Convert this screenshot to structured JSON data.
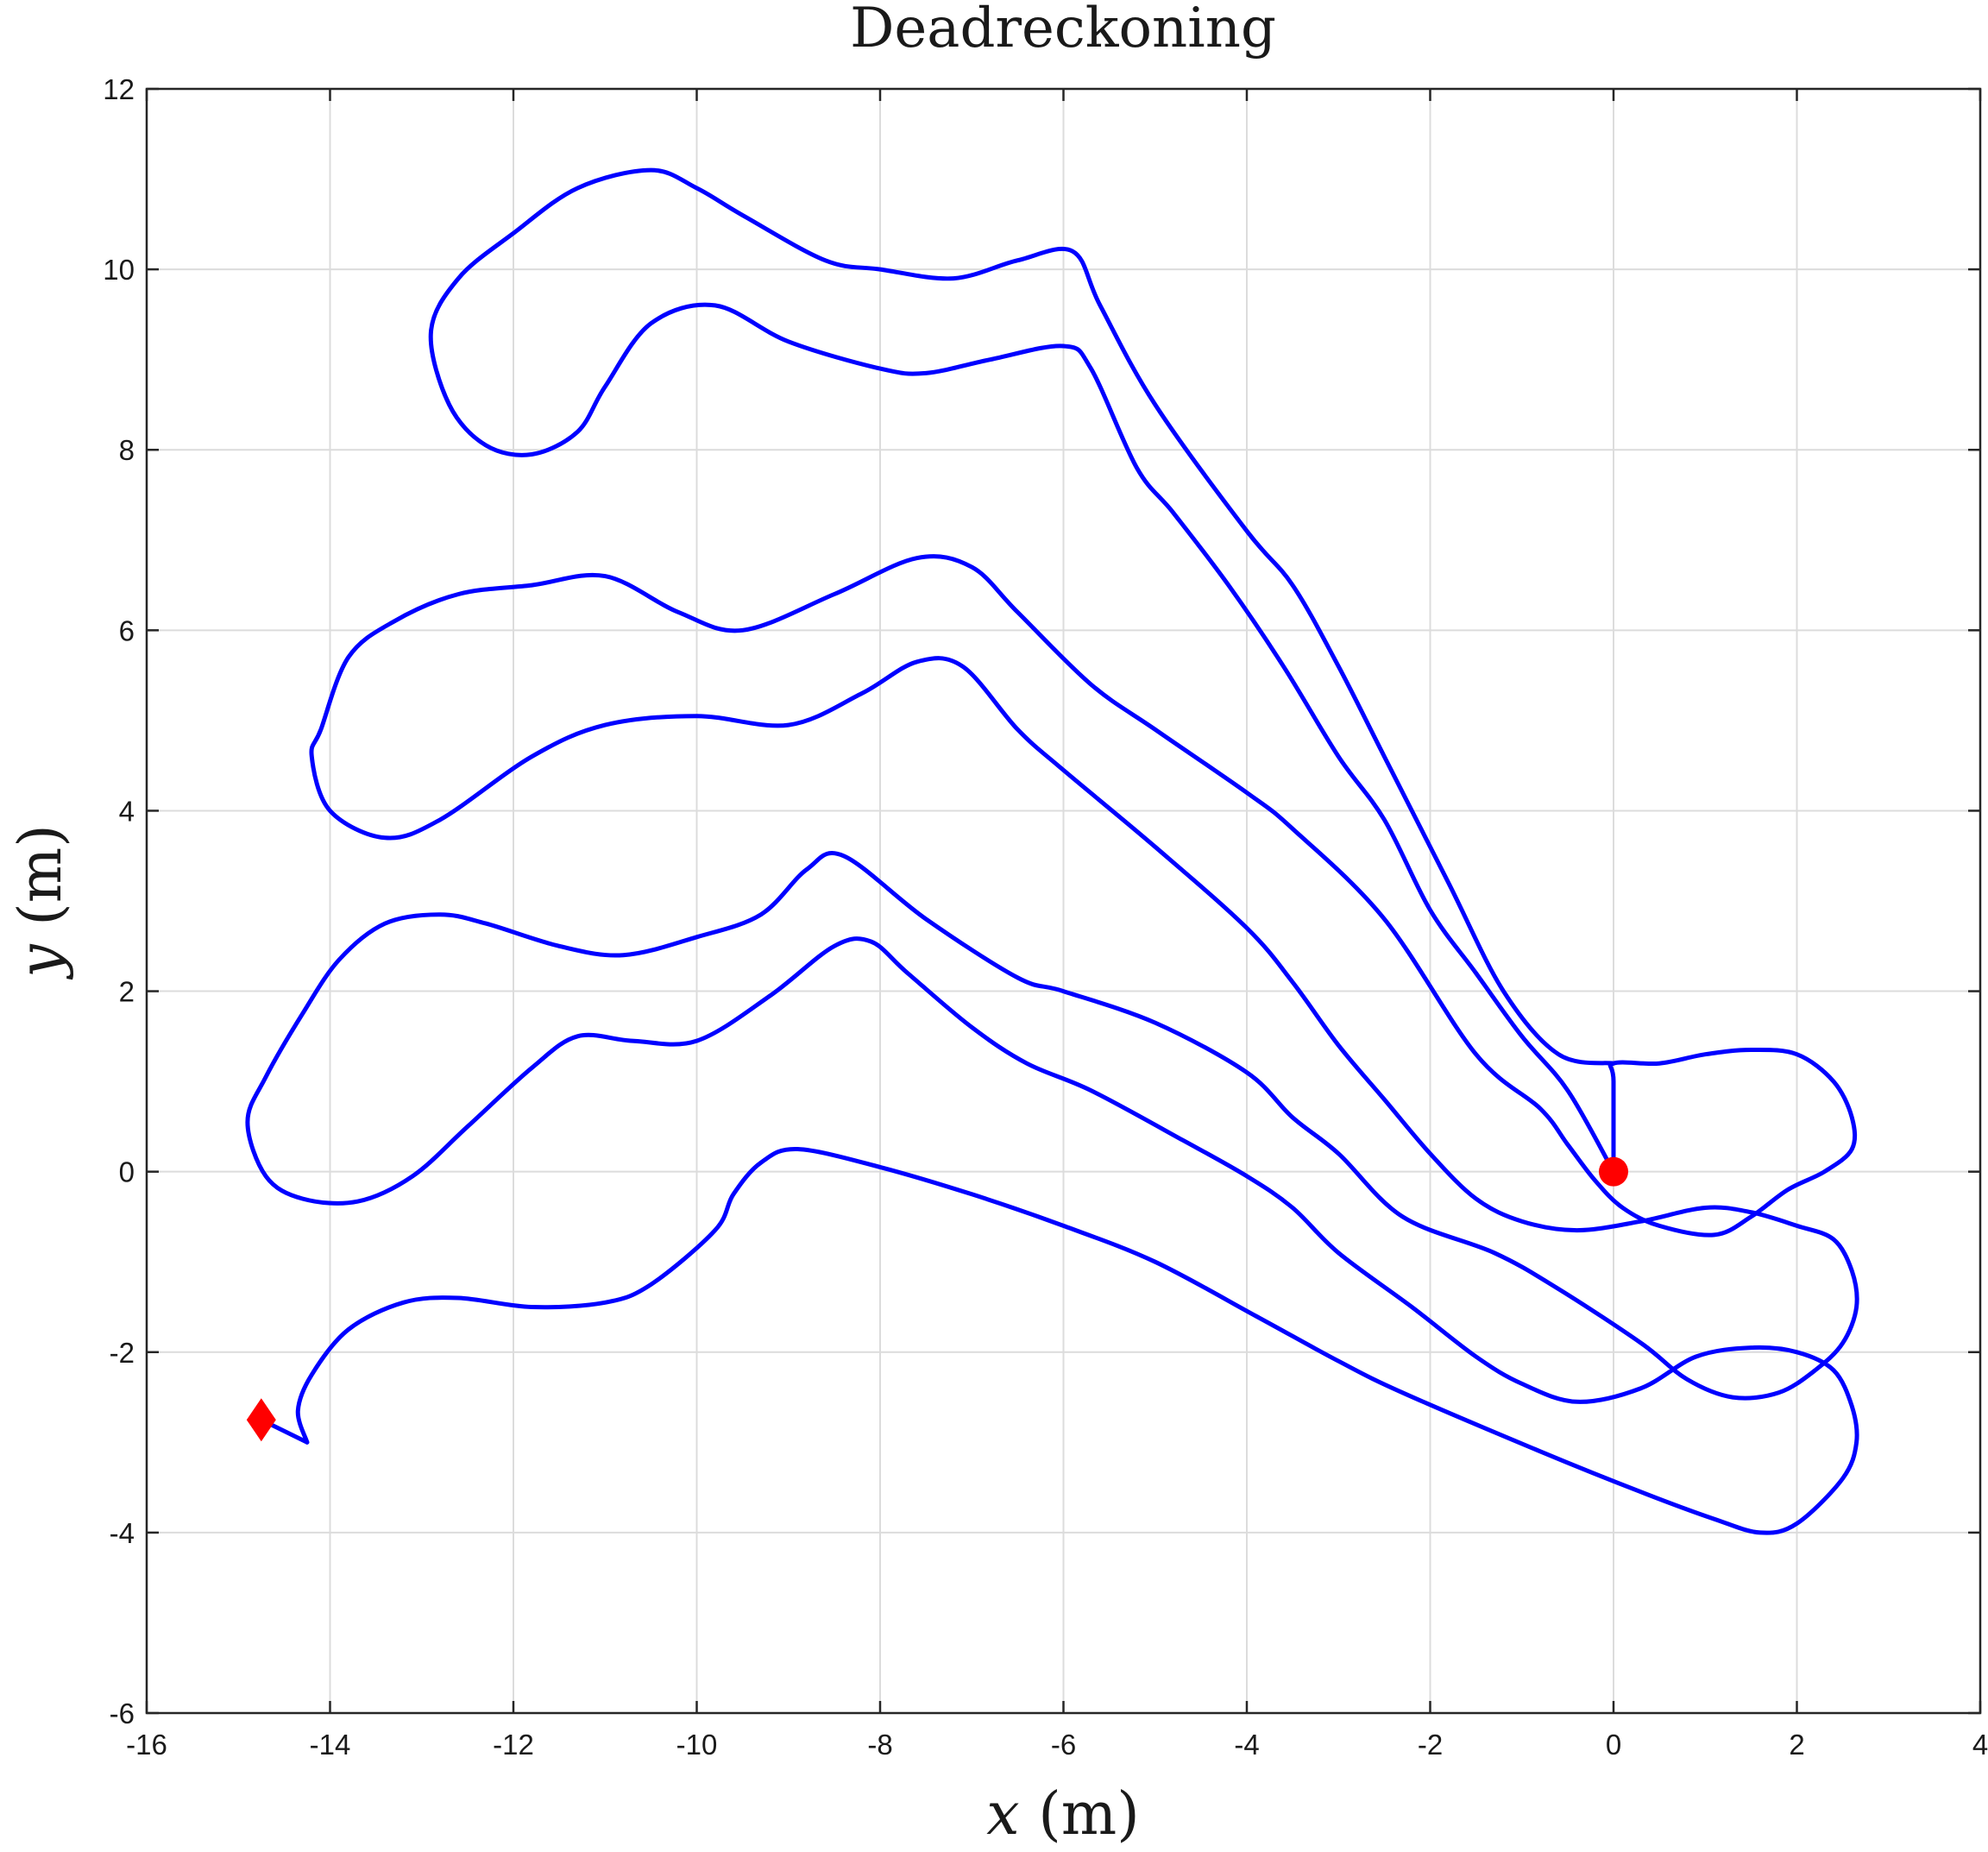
{
  "chart_data": {
    "type": "line",
    "title": "Deadreckoning",
    "xlabel_var": "x",
    "xlabel_unit": " (m)",
    "ylabel_var": "y",
    "ylabel_unit": " (m)",
    "xlim": [
      -16,
      4
    ],
    "ylim": [
      -6,
      12
    ],
    "xticks": [
      -16,
      -14,
      -12,
      -10,
      -8,
      -6,
      -4,
      -2,
      0,
      2,
      4
    ],
    "yticks": [
      -6,
      -4,
      -2,
      0,
      2,
      4,
      6,
      8,
      10,
      12
    ],
    "grid": true,
    "legend": "none",
    "series": [
      {
        "style": "line",
        "color": "#0000ff",
        "points": [
          [
            0,
            0
          ],
          [
            0,
            1.0
          ],
          [
            0,
            1.2
          ],
          [
            0.5,
            1.2
          ],
          [
            1.0,
            1.3
          ],
          [
            1.5,
            1.35
          ],
          [
            2.0,
            1.3
          ],
          [
            2.4,
            1.0
          ],
          [
            2.6,
            0.6
          ],
          [
            2.6,
            0.25
          ],
          [
            2.3,
            0.0
          ],
          [
            1.9,
            -0.2
          ],
          [
            1.5,
            -0.5
          ],
          [
            1.1,
            -0.7
          ],
          [
            0.5,
            -0.6
          ],
          [
            0.1,
            -0.4
          ],
          [
            -0.2,
            -0.1
          ],
          [
            -0.5,
            0.3
          ],
          [
            -0.8,
            0.7
          ],
          [
            -1.5,
            1.3
          ],
          [
            -2.5,
            2.8
          ],
          [
            -3.5,
            3.8
          ],
          [
            -4.0,
            4.2
          ],
          [
            -5.0,
            4.9
          ],
          [
            -5.7,
            5.4
          ],
          [
            -6.5,
            6.2
          ],
          [
            -7.0,
            6.7
          ],
          [
            -7.6,
            6.8
          ],
          [
            -8.5,
            6.4
          ],
          [
            -9.5,
            6.0
          ],
          [
            -10.2,
            6.2
          ],
          [
            -11.0,
            6.6
          ],
          [
            -11.8,
            6.5
          ],
          [
            -12.6,
            6.4
          ],
          [
            -13.3,
            6.1
          ],
          [
            -13.8,
            5.7
          ],
          [
            -14.1,
            4.9
          ],
          [
            -14.2,
            4.6
          ],
          [
            -14.0,
            4.0
          ],
          [
            -13.4,
            3.7
          ],
          [
            -12.8,
            3.9
          ],
          [
            -11.8,
            4.6
          ],
          [
            -11.0,
            4.95
          ],
          [
            -10.0,
            5.05
          ],
          [
            -9.0,
            4.95
          ],
          [
            -8.2,
            5.3
          ],
          [
            -7.6,
            5.65
          ],
          [
            -7.1,
            5.6
          ],
          [
            -6.5,
            4.9
          ],
          [
            -6.0,
            4.45
          ],
          [
            -5.0,
            3.6
          ],
          [
            -4.0,
            2.7
          ],
          [
            -3.5,
            2.1
          ],
          [
            -3.0,
            1.4
          ],
          [
            -2.5,
            0.8
          ],
          [
            -2.0,
            0.2
          ],
          [
            -1.5,
            -0.3
          ],
          [
            -1.0,
            -0.55
          ],
          [
            -0.4,
            -0.65
          ],
          [
            0.3,
            -0.55
          ],
          [
            1.0,
            -0.4
          ],
          [
            1.5,
            -0.45
          ],
          [
            2.0,
            -0.6
          ],
          [
            2.4,
            -0.75
          ],
          [
            2.6,
            -1.1
          ],
          [
            2.65,
            -1.5
          ],
          [
            2.5,
            -1.9
          ],
          [
            2.2,
            -2.2
          ],
          [
            1.8,
            -2.45
          ],
          [
            1.3,
            -2.5
          ],
          [
            0.8,
            -2.3
          ],
          [
            0.3,
            -1.9
          ],
          [
            -0.6,
            -1.3
          ],
          [
            -1.3,
            -0.9
          ],
          [
            -2.3,
            -0.5
          ],
          [
            -3.0,
            0.2
          ],
          [
            -3.5,
            0.6
          ],
          [
            -4.0,
            1.1
          ],
          [
            -5.0,
            1.65
          ],
          [
            -6.0,
            2.0
          ],
          [
            -6.5,
            2.15
          ],
          [
            -7.5,
            2.8
          ],
          [
            -8.4,
            3.5
          ],
          [
            -8.8,
            3.35
          ],
          [
            -9.3,
            2.85
          ],
          [
            -10.0,
            2.6
          ],
          [
            -10.8,
            2.4
          ],
          [
            -11.5,
            2.5
          ],
          [
            -12.3,
            2.75
          ],
          [
            -12.8,
            2.85
          ],
          [
            -13.4,
            2.75
          ],
          [
            -13.9,
            2.35
          ],
          [
            -14.3,
            1.75
          ],
          [
            -14.7,
            1.05
          ],
          [
            -14.9,
            0.55
          ],
          [
            -14.7,
            -0.05
          ],
          [
            -14.3,
            -0.3
          ],
          [
            -13.7,
            -0.33
          ],
          [
            -13.1,
            -0.05
          ],
          [
            -12.5,
            0.5
          ],
          [
            -11.8,
            1.15
          ],
          [
            -11.3,
            1.5
          ],
          [
            -10.7,
            1.45
          ],
          [
            -10.0,
            1.45
          ],
          [
            -9.2,
            1.95
          ],
          [
            -8.5,
            2.5
          ],
          [
            -8.1,
            2.55
          ],
          [
            -7.7,
            2.2
          ],
          [
            -7.0,
            1.6
          ],
          [
            -6.4,
            1.2
          ],
          [
            -5.7,
            0.9
          ],
          [
            -4.7,
            0.35
          ],
          [
            -4.0,
            -0.05
          ],
          [
            -3.5,
            -0.4
          ],
          [
            -3.0,
            -0.9
          ],
          [
            -2.2,
            -1.5
          ],
          [
            -1.5,
            -2.05
          ],
          [
            -1.0,
            -2.35
          ],
          [
            -0.4,
            -2.55
          ],
          [
            0.3,
            -2.4
          ],
          [
            0.9,
            -2.05
          ],
          [
            1.5,
            -1.95
          ],
          [
            2.0,
            -2.0
          ],
          [
            2.4,
            -2.2
          ],
          [
            2.6,
            -2.6
          ],
          [
            2.65,
            -3.0
          ],
          [
            2.5,
            -3.4
          ],
          [
            2.0,
            -3.9
          ],
          [
            1.6,
            -4.0
          ],
          [
            1.1,
            -3.85
          ],
          [
            0.3,
            -3.55
          ],
          [
            -0.8,
            -3.1
          ],
          [
            -2.3,
            -2.45
          ],
          [
            -3.0,
            -2.1
          ],
          [
            -3.9,
            -1.6
          ],
          [
            -5.0,
            -1.0
          ],
          [
            -6.0,
            -0.6
          ],
          [
            -7.0,
            -0.25
          ],
          [
            -8.0,
            0.05
          ],
          [
            -8.9,
            0.25
          ],
          [
            -9.3,
            0.1
          ],
          [
            -9.6,
            -0.25
          ],
          [
            -9.8,
            -0.65
          ],
          [
            -10.5,
            -1.25
          ],
          [
            -11.0,
            -1.45
          ],
          [
            -11.8,
            -1.5
          ],
          [
            -12.6,
            -1.4
          ],
          [
            -13.2,
            -1.45
          ],
          [
            -13.8,
            -1.75
          ],
          [
            -14.2,
            -2.25
          ],
          [
            -14.35,
            -2.65
          ],
          [
            -14.25,
            -3.0
          ]
        ]
      },
      {
        "style": "line",
        "color": "#0000ff",
        "points": [
          [
            -14.25,
            -3.0
          ],
          [
            -14.75,
            -2.75
          ]
        ]
      },
      {
        "style": "line",
        "color": "#0000ff",
        "points": [
          [
            0,
            1.2
          ],
          [
            -0.6,
            1.3
          ],
          [
            -1.2,
            2.0
          ],
          [
            -1.8,
            3.2
          ],
          [
            -2.5,
            4.6
          ],
          [
            -3.0,
            5.6
          ],
          [
            -3.5,
            6.5
          ],
          [
            -4.0,
            7.1
          ],
          [
            -5.0,
            8.5
          ],
          [
            -5.6,
            9.6
          ],
          [
            -5.9,
            10.2
          ],
          [
            -6.5,
            10.1
          ],
          [
            -7.2,
            9.9
          ],
          [
            -8.0,
            10.0
          ],
          [
            -8.6,
            10.1
          ],
          [
            -9.5,
            10.6
          ],
          [
            -10.0,
            10.9
          ],
          [
            -10.5,
            11.1
          ],
          [
            -11.3,
            10.9
          ],
          [
            -12.0,
            10.4
          ],
          [
            -12.6,
            9.9
          ],
          [
            -12.9,
            9.3
          ],
          [
            -12.7,
            8.5
          ],
          [
            -12.3,
            8.05
          ],
          [
            -11.8,
            7.95
          ],
          [
            -11.3,
            8.2
          ],
          [
            -11.0,
            8.7
          ],
          [
            -10.5,
            9.4
          ],
          [
            -9.8,
            9.6
          ],
          [
            -9.0,
            9.2
          ],
          [
            -8.0,
            8.9
          ],
          [
            -7.5,
            8.85
          ],
          [
            -6.8,
            9.0
          ],
          [
            -6.0,
            9.15
          ],
          [
            -5.7,
            8.9
          ],
          [
            -5.2,
            7.8
          ],
          [
            -4.8,
            7.3
          ],
          [
            -4.2,
            6.5
          ],
          [
            -3.6,
            5.6
          ],
          [
            -3.0,
            4.6
          ],
          [
            -2.5,
            3.9
          ],
          [
            -2.0,
            2.9
          ],
          [
            -1.5,
            2.2
          ],
          [
            -1.0,
            1.5
          ],
          [
            -0.5,
            0.9
          ],
          [
            0,
            0
          ]
        ]
      }
    ],
    "markers": [
      {
        "shape": "circle",
        "color": "#ff0000",
        "x": 0,
        "y": 0
      },
      {
        "shape": "diamond",
        "color": "#ff0000",
        "x": -14.75,
        "y": -2.75
      }
    ]
  }
}
